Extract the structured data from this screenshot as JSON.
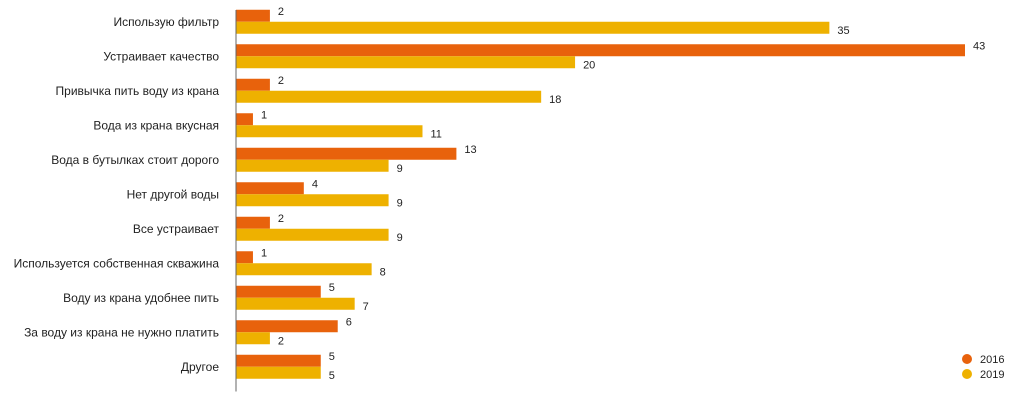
{
  "chart_data": {
    "type": "bar",
    "orientation": "horizontal",
    "categories": [
      "Использую фильтр",
      "Устраивает качество",
      "Привычка пить воду из крана",
      "Вода из крана вкусная",
      "Вода в бутылках стоит дорого",
      "Нет другой воды",
      "Все устраивает",
      "Используется собственная скважина",
      "Воду из крана удобнее пить",
      "За воду из крана не нужно платить",
      "Другое"
    ],
    "series": [
      {
        "name": "2016",
        "color": "#e8620c",
        "values": [
          2,
          43,
          2,
          1,
          13,
          4,
          2,
          1,
          5,
          6,
          5
        ]
      },
      {
        "name": "2019",
        "color": "#eeb100",
        "values": [
          35,
          20,
          18,
          11,
          9,
          9,
          9,
          8,
          7,
          2,
          5
        ]
      }
    ],
    "xlim": [
      0,
      43
    ],
    "data_labels": true,
    "grid": false,
    "legend_position": "bottom-right"
  }
}
